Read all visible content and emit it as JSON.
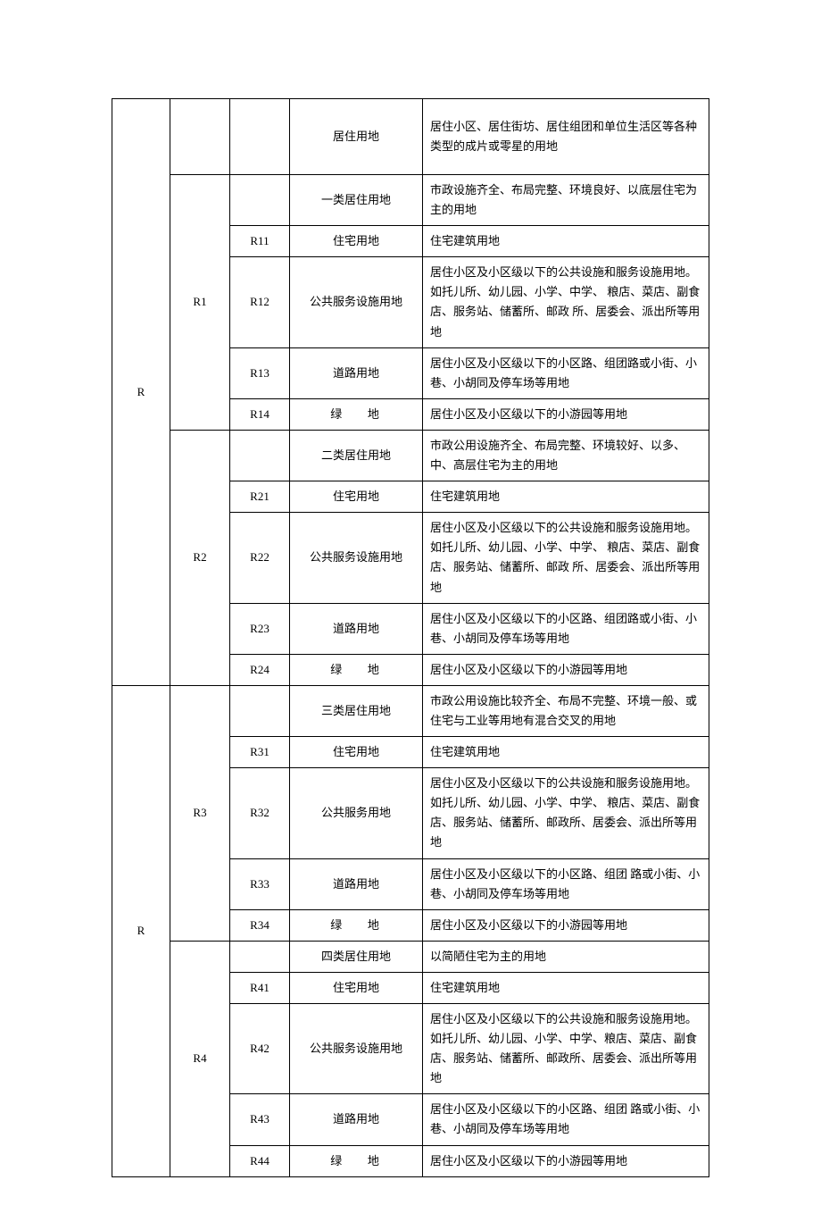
{
  "groups": [
    {
      "code1": "R",
      "first": {
        "code2": "",
        "code3": "",
        "col4": "居住用地",
        "col5": "居住小区、居住街坊、居住组团和单位生活区等各种类型的成片或零星的用地"
      },
      "subgroups": [
        {
          "code2": "R1",
          "rows": [
            {
              "code3": "",
              "col4": "一类居住用地",
              "col5": "市政设施齐全、布局完整、环境良好、以底层住宅为主的用地"
            },
            {
              "code3": "R11",
              "col4": "住宅用地",
              "col5": "住宅建筑用地"
            },
            {
              "code3": "R12",
              "col4": "公共服务设施用地",
              "col5": "居住小区及小区级以下的公共设施和服务设施用地。如托儿所、幼儿园、小学、中学、 粮店、菜店、副食店、服务站、储蓄所、邮政 所、居委会、派出所等用地"
            },
            {
              "code3": "R13",
              "col4": "道路用地",
              "col5": "居住小区及小区级以下的小区路、组团路或小街、小巷、小胡同及停车场等用地"
            },
            {
              "code3": "R14",
              "col4": "绿地",
              "col5": "居住小区及小区级以下的小游园等用地",
              "spaced": true
            }
          ]
        },
        {
          "code2": "R2",
          "rows": [
            {
              "code3": "",
              "col4": "二类居住用地",
              "col5": "市政公用设施齐全、布局完整、环境较好、以多、中、高层住宅为主的用地"
            },
            {
              "code3": "R21",
              "col4": "住宅用地",
              "col5": "住宅建筑用地"
            },
            {
              "code3": "R22",
              "col4": "公共服务设施用地",
              "col5": "居住小区及小区级以下的公共设施和服务设施用地。如托儿所、幼儿园、小学、中学、 粮店、菜店、副食店、服务站、储蓄所、邮政 所、居委会、派出所等用地"
            },
            {
              "code3": "R23",
              "col4": "道路用地",
              "col5": "居住小区及小区级以下的小区路、组团路或小街、小巷、小胡同及停车场等用地"
            },
            {
              "code3": "R24",
              "col4": "绿地",
              "col5": "居住小区及小区级以下的小游园等用地",
              "spaced": true
            }
          ]
        }
      ]
    },
    {
      "code1": "R",
      "subgroups": [
        {
          "code2": "R3",
          "rows": [
            {
              "code3": "",
              "col4": "三类居住用地",
              "col5": "市政公用设施比较齐全、布局不完整、环境一般、或住宅与工业等用地有混合交叉的用地"
            },
            {
              "code3": "R31",
              "col4": "住宅用地",
              "col5": "住宅建筑用地"
            },
            {
              "code3": "R32",
              "col4": "公共服务用地",
              "col5": "居住小区及小区级以下的公共设施和服务设施用地。如托儿所、幼儿园、小学、中学、 粮店、菜店、副食店、服务站、储蓄所、邮政所、居委会、派出所等用地"
            },
            {
              "code3": "R33",
              "col4": "道路用地",
              "col5": "居住小区及小区级以下的小区路、组团 路或小街、小巷、小胡同及停车场等用地"
            },
            {
              "code3": "R34",
              "col4": "绿地",
              "col5": "居住小区及小区级以下的小游园等用地",
              "spaced": true
            }
          ]
        },
        {
          "code2": "R4",
          "rows": [
            {
              "code3": "",
              "col4": "四类居住用地",
              "col5": "以简陋住宅为主的用地"
            },
            {
              "code3": "R41",
              "col4": "住宅用地",
              "col5": "住宅建筑用地"
            },
            {
              "code3": "R42",
              "col4": "公共服务设施用地",
              "col5": "居住小区及小区级以下的公共设施和服务设施用地。如托儿所、幼儿园、小学、中学、粮店、菜店、副食店、服务站、储蓄所、邮政所、居委会、派出所等用地"
            },
            {
              "code3": "R43",
              "col4": "道路用地",
              "col5": "居住小区及小区级以下的小区路、组团 路或小街、小巷、小胡同及停车场等用地"
            },
            {
              "code3": "R44",
              "col4": "绿地",
              "col5": "居住小区及小区级以下的小游园等用地",
              "spaced": true
            }
          ]
        }
      ]
    }
  ]
}
